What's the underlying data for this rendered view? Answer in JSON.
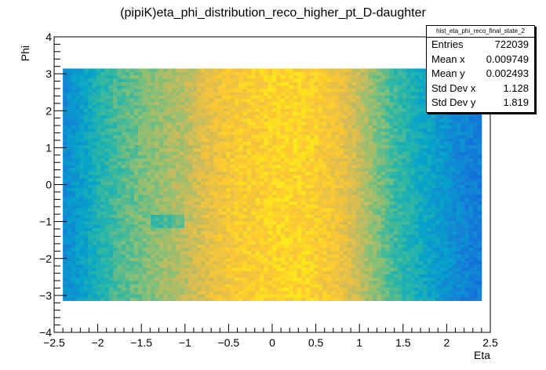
{
  "chart_data": {
    "type": "heatmap",
    "title": "(pipiK)eta_phi_distribution_reco_higher_pt_D-daughter",
    "xlabel": "Eta",
    "ylabel": "Phi",
    "xlim": [
      -2.5,
      2.5
    ],
    "ylim": [
      -4,
      4
    ],
    "x_ticks": [
      "−2.5",
      "−2",
      "−1.5",
      "−1",
      "−0.5",
      "0",
      "0.5",
      "1",
      "1.5",
      "2",
      "2.5"
    ],
    "y_ticks": [
      "−4",
      "−3",
      "−2",
      "−1",
      "0",
      "1",
      "2",
      "3",
      "4"
    ],
    "x_tick_values": [
      -2.5,
      -2,
      -1.5,
      -1,
      -0.5,
      0,
      0.5,
      1,
      1.5,
      2,
      2.5
    ],
    "y_tick_values": [
      -4,
      -3,
      -2,
      -1,
      0,
      1,
      2,
      3,
      4
    ],
    "eta_range": [
      -2.4,
      2.4
    ],
    "phi_range": [
      -3.1416,
      3.1416
    ],
    "n_bins_x": 100,
    "n_bins_y": 70,
    "eta_profile": {
      "eta": [
        -2.4,
        -2.2,
        -2.0,
        -1.8,
        -1.6,
        -1.4,
        -1.2,
        -1.0,
        -0.8,
        -0.6,
        -0.4,
        -0.2,
        0.0,
        0.2,
        0.4,
        0.6,
        0.8,
        1.0,
        1.2,
        1.4,
        1.6,
        1.8,
        2.0,
        2.2,
        2.4
      ],
      "relative_density": [
        0.28,
        0.36,
        0.45,
        0.53,
        0.58,
        0.63,
        0.67,
        0.71,
        0.78,
        0.83,
        0.87,
        0.88,
        0.9,
        0.91,
        0.9,
        0.87,
        0.82,
        0.73,
        0.62,
        0.52,
        0.45,
        0.38,
        0.32,
        0.27,
        0.23
      ]
    },
    "low_density_band": {
      "eta": [
        -1.4,
        -1.0
      ],
      "phi": [
        -1.2,
        -0.8
      ]
    },
    "colormap": [
      "#352a87",
      "#0f5cdd",
      "#1481d6",
      "#06a4ca",
      "#2eb7a4",
      "#87bf77",
      "#d1bb59",
      "#fec832",
      "#f9fb0e"
    ],
    "stats": {
      "name": "hist_eta_phi_reco_final_state_2",
      "rows": [
        {
          "label": "Entries",
          "value": "722039"
        },
        {
          "label": "Mean x",
          "value": "0.009749"
        },
        {
          "label": "Mean y",
          "value": "0.002493"
        },
        {
          "label": "Std Dev x",
          "value": "1.128"
        },
        {
          "label": "Std Dev y",
          "value": "1.819"
        }
      ]
    }
  }
}
